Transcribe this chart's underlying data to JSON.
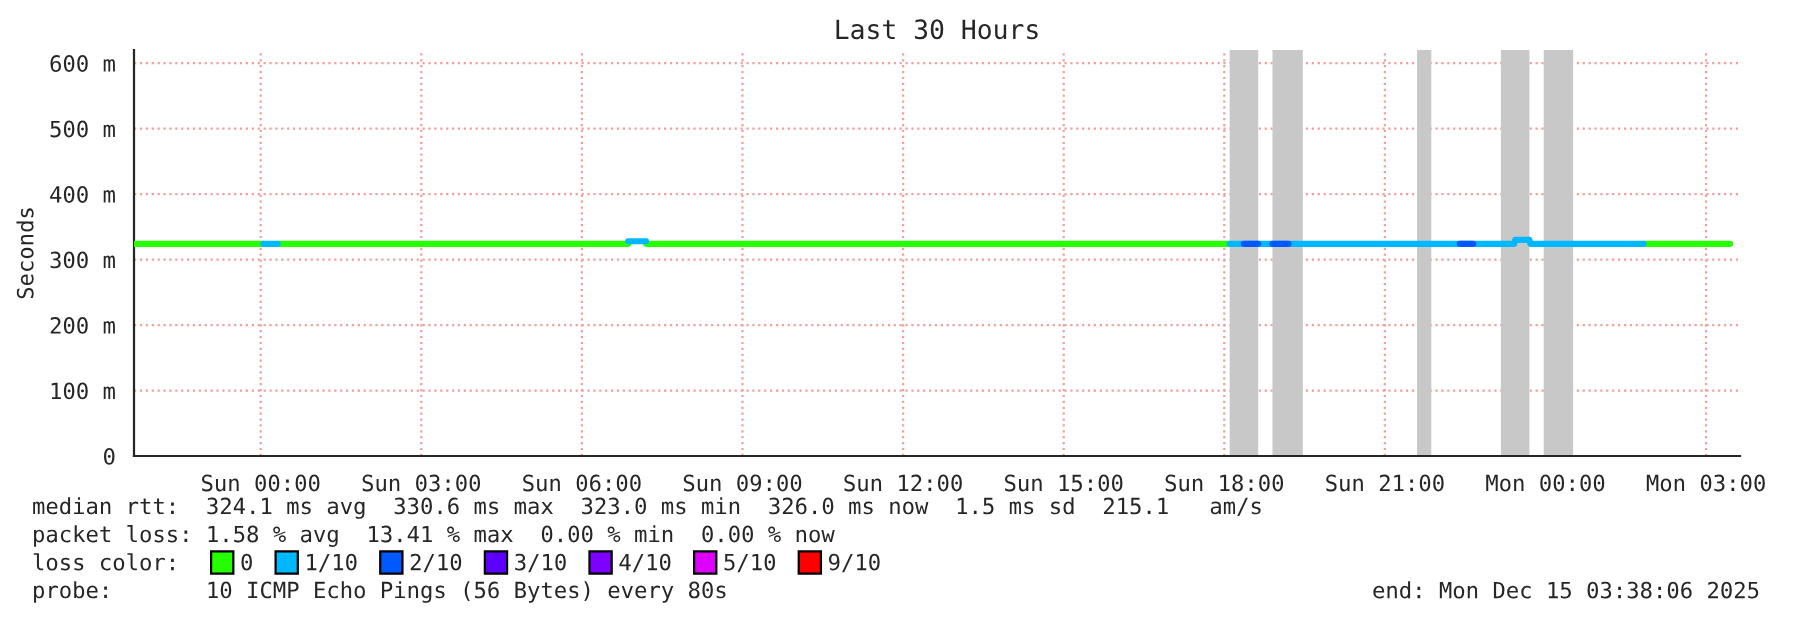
{
  "chart_data": {
    "type": "line",
    "title": "Last 30 Hours",
    "ylabel": "Seconds",
    "xlim": [
      "2025-12-13T21:38",
      "2025-12-15T03:38"
    ],
    "xticks": [
      {
        "value": "2025-12-14T00:00",
        "label": "Sun 00:00"
      },
      {
        "value": "2025-12-14T03:00",
        "label": "Sun 03:00"
      },
      {
        "value": "2025-12-14T06:00",
        "label": "Sun 06:00"
      },
      {
        "value": "2025-12-14T09:00",
        "label": "Sun 09:00"
      },
      {
        "value": "2025-12-14T12:00",
        "label": "Sun 12:00"
      },
      {
        "value": "2025-12-14T15:00",
        "label": "Sun 15:00"
      },
      {
        "value": "2025-12-14T18:00",
        "label": "Sun 18:00"
      },
      {
        "value": "2025-12-14T21:00",
        "label": "Sun 21:00"
      },
      {
        "value": "2025-12-15T00:00",
        "label": "Mon 00:00"
      },
      {
        "value": "2025-12-15T03:00",
        "label": "Mon 03:00"
      }
    ],
    "ylim": [
      0,
      620
    ],
    "yticks": [
      0,
      {
        "value": 100,
        "label": "100 m"
      },
      {
        "value": 200,
        "label": "200 m"
      },
      {
        "value": 300,
        "label": "300 m"
      },
      {
        "value": 400,
        "label": "400 m"
      },
      {
        "value": 500,
        "label": "500 m"
      },
      {
        "value": 600,
        "label": "600 m"
      }
    ],
    "grid": true,
    "legend": "bottom",
    "legend_title": "loss color:",
    "series": [
      {
        "name": "0",
        "color": "#26ff00",
        "x": [
          "2025-12-13T21:38",
          "2025-12-14T00:03",
          "2025-12-14T00:10",
          "2025-12-14T00:19",
          "2025-12-14T06:52",
          "2025-12-14T07:00",
          "2025-12-14T07:12",
          "2025-12-14T18:06",
          "2025-12-14T20:00",
          "2025-12-15T01:50",
          "2025-12-15T03:27"
        ],
        "values": [
          324,
          324,
          null,
          324,
          324,
          null,
          324,
          324,
          null,
          324,
          324
        ]
      },
      {
        "name": "1/10",
        "color": "#00b8ff",
        "x": [
          "2025-12-14T00:03",
          "2025-12-14T00:19",
          "2025-12-14T03:00",
          "2025-12-14T06:52",
          "2025-12-14T07:12",
          "2025-12-14T12:00",
          "2025-12-14T18:06",
          "2025-12-14T23:25",
          "2025-12-14T23:26",
          "2025-12-14T23:42",
          "2025-12-14T23:43",
          "2025-12-15T01:50"
        ],
        "values": [
          324,
          324,
          null,
          328,
          328,
          null,
          324,
          324,
          330,
          330,
          324,
          324
        ]
      },
      {
        "name": "2/10",
        "color": "#0059ff",
        "x": [
          "2025-12-14T18:22",
          "2025-12-14T18:38",
          "2025-12-14T18:46",
          "2025-12-14T18:54",
          "2025-12-14T19:12",
          "2025-12-14T20:00",
          "2025-12-14T22:24",
          "2025-12-14T22:39"
        ],
        "values": [
          324,
          324,
          null,
          324,
          324,
          null,
          324,
          324
        ]
      },
      {
        "name": "3/10",
        "color": "#5e00ff"
      },
      {
        "name": "4/10",
        "color": "#7e00ff"
      },
      {
        "name": "5/10",
        "color": "#dd00ff"
      },
      {
        "name": "9/10",
        "color": "#ff0000"
      }
    ],
    "bands": [
      {
        "axis": "x",
        "from": "2025-12-14T18:06",
        "to": "2025-12-14T18:38",
        "color": "#c8c8c8"
      },
      {
        "axis": "x",
        "from": "2025-12-14T18:54",
        "to": "2025-12-14T19:28",
        "color": "#c8c8c8"
      },
      {
        "axis": "x",
        "from": "2025-12-14T21:36",
        "to": "2025-12-14T21:52",
        "color": "#c8c8c8"
      },
      {
        "axis": "x",
        "from": "2025-12-14T23:10",
        "to": "2025-12-14T23:42",
        "color": "#c8c8c8"
      },
      {
        "axis": "x",
        "from": "2025-12-14T23:58",
        "to": "2025-12-15T00:31",
        "color": "#c8c8c8"
      }
    ],
    "annotations": [
      "median rtt:  324.1 ms avg  330.6 ms max  323.0 ms min  326.0 ms now  1.5 ms sd  215.1   am/s",
      "packet loss: 1.58 % avg  13.41 % max  0.00 % min  0.00 % now",
      "probe:       10 ICMP Echo Pings (56 Bytes) every 80s",
      "end: Mon Dec 15 03:38:06 2025"
    ]
  }
}
